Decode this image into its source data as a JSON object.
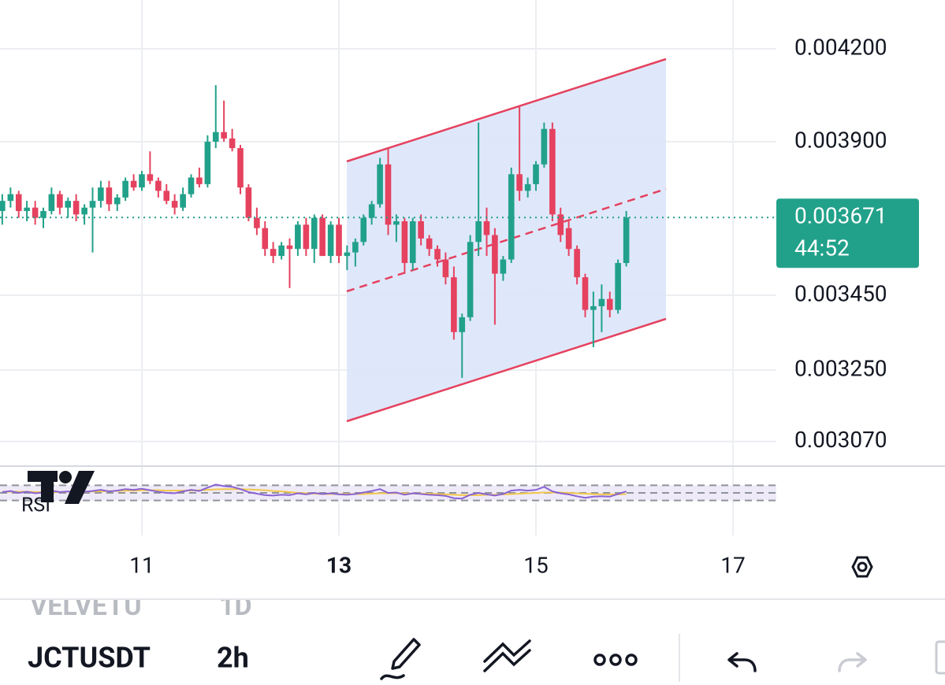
{
  "chart_data": {
    "type": "candlestick",
    "log": true,
    "grid": true,
    "up_color": "#22a18a",
    "down_color": "#e5425f",
    "xlim": [
      9.56,
      17.44
    ],
    "xticks": [
      11,
      13,
      15,
      17
    ],
    "ylim": [
      0.003014,
      0.004367
    ],
    "yticks": [
      {
        "value": 0.00307,
        "label": "0.003070"
      },
      {
        "value": 0.00325,
        "label": "0.003250"
      },
      {
        "value": 0.00345,
        "label": "0.003450"
      },
      {
        "value": 0.0039,
        "label": "0.003900"
      },
      {
        "value": 0.0042,
        "label": "0.004200"
      }
    ],
    "countdown": "44:52",
    "x": [
      9.583,
      9.667,
      9.75,
      9.833,
      9.917,
      10,
      10.083,
      10.167,
      10.25,
      10.333,
      10.417,
      10.5,
      10.583,
      10.667,
      10.75,
      10.833,
      10.917,
      11,
      11.083,
      11.167,
      11.25,
      11.333,
      11.417,
      11.5,
      11.583,
      11.667,
      11.75,
      11.833,
      11.917,
      12,
      12.083,
      12.167,
      12.25,
      12.333,
      12.417,
      12.5,
      12.583,
      12.667,
      12.75,
      12.833,
      12.917,
      13,
      13.083,
      13.167,
      13.25,
      13.333,
      13.417,
      13.5,
      13.583,
      13.667,
      13.75,
      13.833,
      13.917,
      14,
      14.083,
      14.167,
      14.25,
      14.333,
      14.417,
      14.5,
      14.583,
      14.667,
      14.75,
      14.833,
      14.917,
      15,
      15.083,
      15.167,
      15.25,
      15.333,
      15.417,
      15.5,
      15.583,
      15.667,
      15.75,
      15.833,
      15.917
    ],
    "open": [
      0.00369,
      0.00372,
      0.00374,
      0.00369,
      0.0037,
      0.00367,
      0.00369,
      0.00374,
      0.0037,
      0.00372,
      0.00368,
      0.0037,
      0.00372,
      0.00376,
      0.00371,
      0.00373,
      0.00378,
      0.00376,
      0.0038,
      0.00378,
      0.00375,
      0.00372,
      0.0037,
      0.00374,
      0.00379,
      0.00377,
      0.0039,
      0.00393,
      0.00391,
      0.00388,
      0.00376,
      0.00367,
      0.00364,
      0.00358,
      0.00356,
      0.00359,
      0.00358,
      0.00365,
      0.00358,
      0.00367,
      0.00356,
      0.00365,
      0.00356,
      0.00357,
      0.0036,
      0.00367,
      0.00371,
      0.00383,
      0.00365,
      0.00366,
      0.00354,
      0.00366,
      0.00361,
      0.00358,
      0.00355,
      0.0035,
      0.00335,
      0.00339,
      0.0036,
      0.00366,
      0.00362,
      0.00351,
      0.00355,
      0.0038,
      0.00375,
      0.00377,
      0.00383,
      0.00394,
      0.00368,
      0.00364,
      0.00358,
      0.0035,
      0.00341,
      0.00342,
      0.00344,
      0.00341,
      0.00354
    ],
    "high": [
      0.00374,
      0.00376,
      0.00375,
      0.00372,
      0.00372,
      0.0037,
      0.00376,
      0.00375,
      0.00373,
      0.00374,
      0.00371,
      0.00376,
      0.00378,
      0.00378,
      0.00374,
      0.00379,
      0.0038,
      0.00381,
      0.00387,
      0.00379,
      0.00377,
      0.00374,
      0.00376,
      0.0038,
      0.00382,
      0.00392,
      0.00408,
      0.00403,
      0.00394,
      0.00389,
      0.00377,
      0.0037,
      0.00366,
      0.0036,
      0.0036,
      0.00361,
      0.00366,
      0.00367,
      0.00368,
      0.00368,
      0.00366,
      0.00367,
      0.00359,
      0.00361,
      0.00368,
      0.00372,
      0.00385,
      0.00388,
      0.00368,
      0.00367,
      0.00367,
      0.00368,
      0.00362,
      0.00359,
      0.00357,
      0.00353,
      0.0034,
      0.00362,
      0.00396,
      0.0037,
      0.00364,
      0.00356,
      0.00382,
      0.00401,
      0.00379,
      0.00384,
      0.00396,
      0.00396,
      0.0037,
      0.00366,
      0.00359,
      0.00351,
      0.00346,
      0.00348,
      0.00346,
      0.00355,
      0.00369
    ],
    "low": [
      0.00365,
      0.0037,
      0.00367,
      0.00366,
      0.00365,
      0.00364,
      0.00368,
      0.00368,
      0.00367,
      0.00366,
      0.00365,
      0.00357,
      0.0037,
      0.00369,
      0.00369,
      0.00372,
      0.00375,
      0.00375,
      0.00377,
      0.00373,
      0.00371,
      0.00368,
      0.00369,
      0.00373,
      0.00376,
      0.00376,
      0.00388,
      0.0039,
      0.00387,
      0.00374,
      0.00366,
      0.00362,
      0.00356,
      0.00354,
      0.00355,
      0.00347,
      0.00356,
      0.00356,
      0.00354,
      0.00356,
      0.00354,
      0.00354,
      0.00352,
      0.00353,
      0.00359,
      0.00365,
      0.0037,
      0.00362,
      0.0036,
      0.00351,
      0.00352,
      0.00359,
      0.00356,
      0.00353,
      0.00348,
      0.00333,
      0.00323,
      0.00338,
      0.00356,
      0.00356,
      0.00337,
      0.00349,
      0.00354,
      0.00372,
      0.00373,
      0.00375,
      0.00382,
      0.00366,
      0.0036,
      0.00356,
      0.00348,
      0.00339,
      0.00331,
      0.00335,
      0.00339,
      0.0034,
      0.00353
    ],
    "close": [
      0.00372,
      0.00374,
      0.00369,
      0.0037,
      0.00367,
      0.00369,
      0.00374,
      0.0037,
      0.00372,
      0.00368,
      0.0037,
      0.00372,
      0.00376,
      0.00371,
      0.00373,
      0.00378,
      0.00376,
      0.0038,
      0.00378,
      0.00375,
      0.00372,
      0.0037,
      0.00374,
      0.00379,
      0.00377,
      0.0039,
      0.00393,
      0.00391,
      0.00388,
      0.00376,
      0.00367,
      0.00364,
      0.00358,
      0.00356,
      0.00359,
      0.00358,
      0.00365,
      0.00358,
      0.00367,
      0.00356,
      0.00365,
      0.00356,
      0.00357,
      0.0036,
      0.00367,
      0.00371,
      0.00383,
      0.00365,
      0.00366,
      0.00354,
      0.00366,
      0.00361,
      0.00358,
      0.00355,
      0.0035,
      0.00335,
      0.00339,
      0.0036,
      0.00366,
      0.00362,
      0.00351,
      0.00355,
      0.0038,
      0.00375,
      0.00377,
      0.00383,
      0.00394,
      0.00368,
      0.00362,
      0.00358,
      0.0035,
      0.00341,
      0.00342,
      0.00344,
      0.00341,
      0.00354,
      0.003671
    ],
    "rsi": {
      "label": "RSI",
      "ylim": [
        0,
        100
      ],
      "levels": [
        70,
        50,
        30
      ],
      "band_color": "#efeaf8",
      "series": [
        {
          "color": "#8a63d2",
          "values": [
            52,
            55,
            50,
            53,
            49,
            51,
            56,
            52,
            54,
            50,
            53,
            55,
            58,
            54,
            56,
            60,
            58,
            61,
            57,
            53,
            50,
            49,
            54,
            58,
            55,
            64,
            72,
            68,
            66,
            60,
            52,
            48,
            44,
            43,
            45,
            44,
            49,
            46,
            50,
            47,
            49,
            46,
            45,
            47,
            51,
            55,
            60,
            50,
            51,
            45,
            49,
            47,
            45,
            44,
            42,
            36,
            35,
            45,
            50,
            46,
            43,
            47,
            56,
            58,
            56,
            58,
            66,
            54,
            49,
            46,
            41,
            37,
            40,
            41,
            40,
            47,
            54
          ]
        },
        {
          "color": "#f2c84b",
          "values": [
            53,
            53,
            53,
            53,
            52,
            52,
            52,
            52,
            53,
            53,
            53,
            54,
            54,
            55,
            55,
            56,
            56,
            57,
            57,
            57,
            56,
            56,
            56,
            56,
            57,
            58,
            59,
            60,
            60,
            60,
            59,
            58,
            57,
            55,
            54,
            52,
            50,
            49,
            48,
            47,
            47,
            47,
            47,
            47,
            47,
            48,
            49,
            49,
            49,
            49,
            48,
            48,
            48,
            47,
            46,
            45,
            44,
            44,
            44,
            45,
            45,
            46,
            47,
            48,
            49,
            50,
            51,
            51,
            51,
            50,
            49,
            48,
            47,
            46,
            46,
            46,
            47
          ]
        }
      ]
    }
  },
  "toolbar": {
    "symbol": "JCTUSDT",
    "interval": "2h",
    "prev_symbol": "VELVETU",
    "prev_interval": "1D"
  }
}
